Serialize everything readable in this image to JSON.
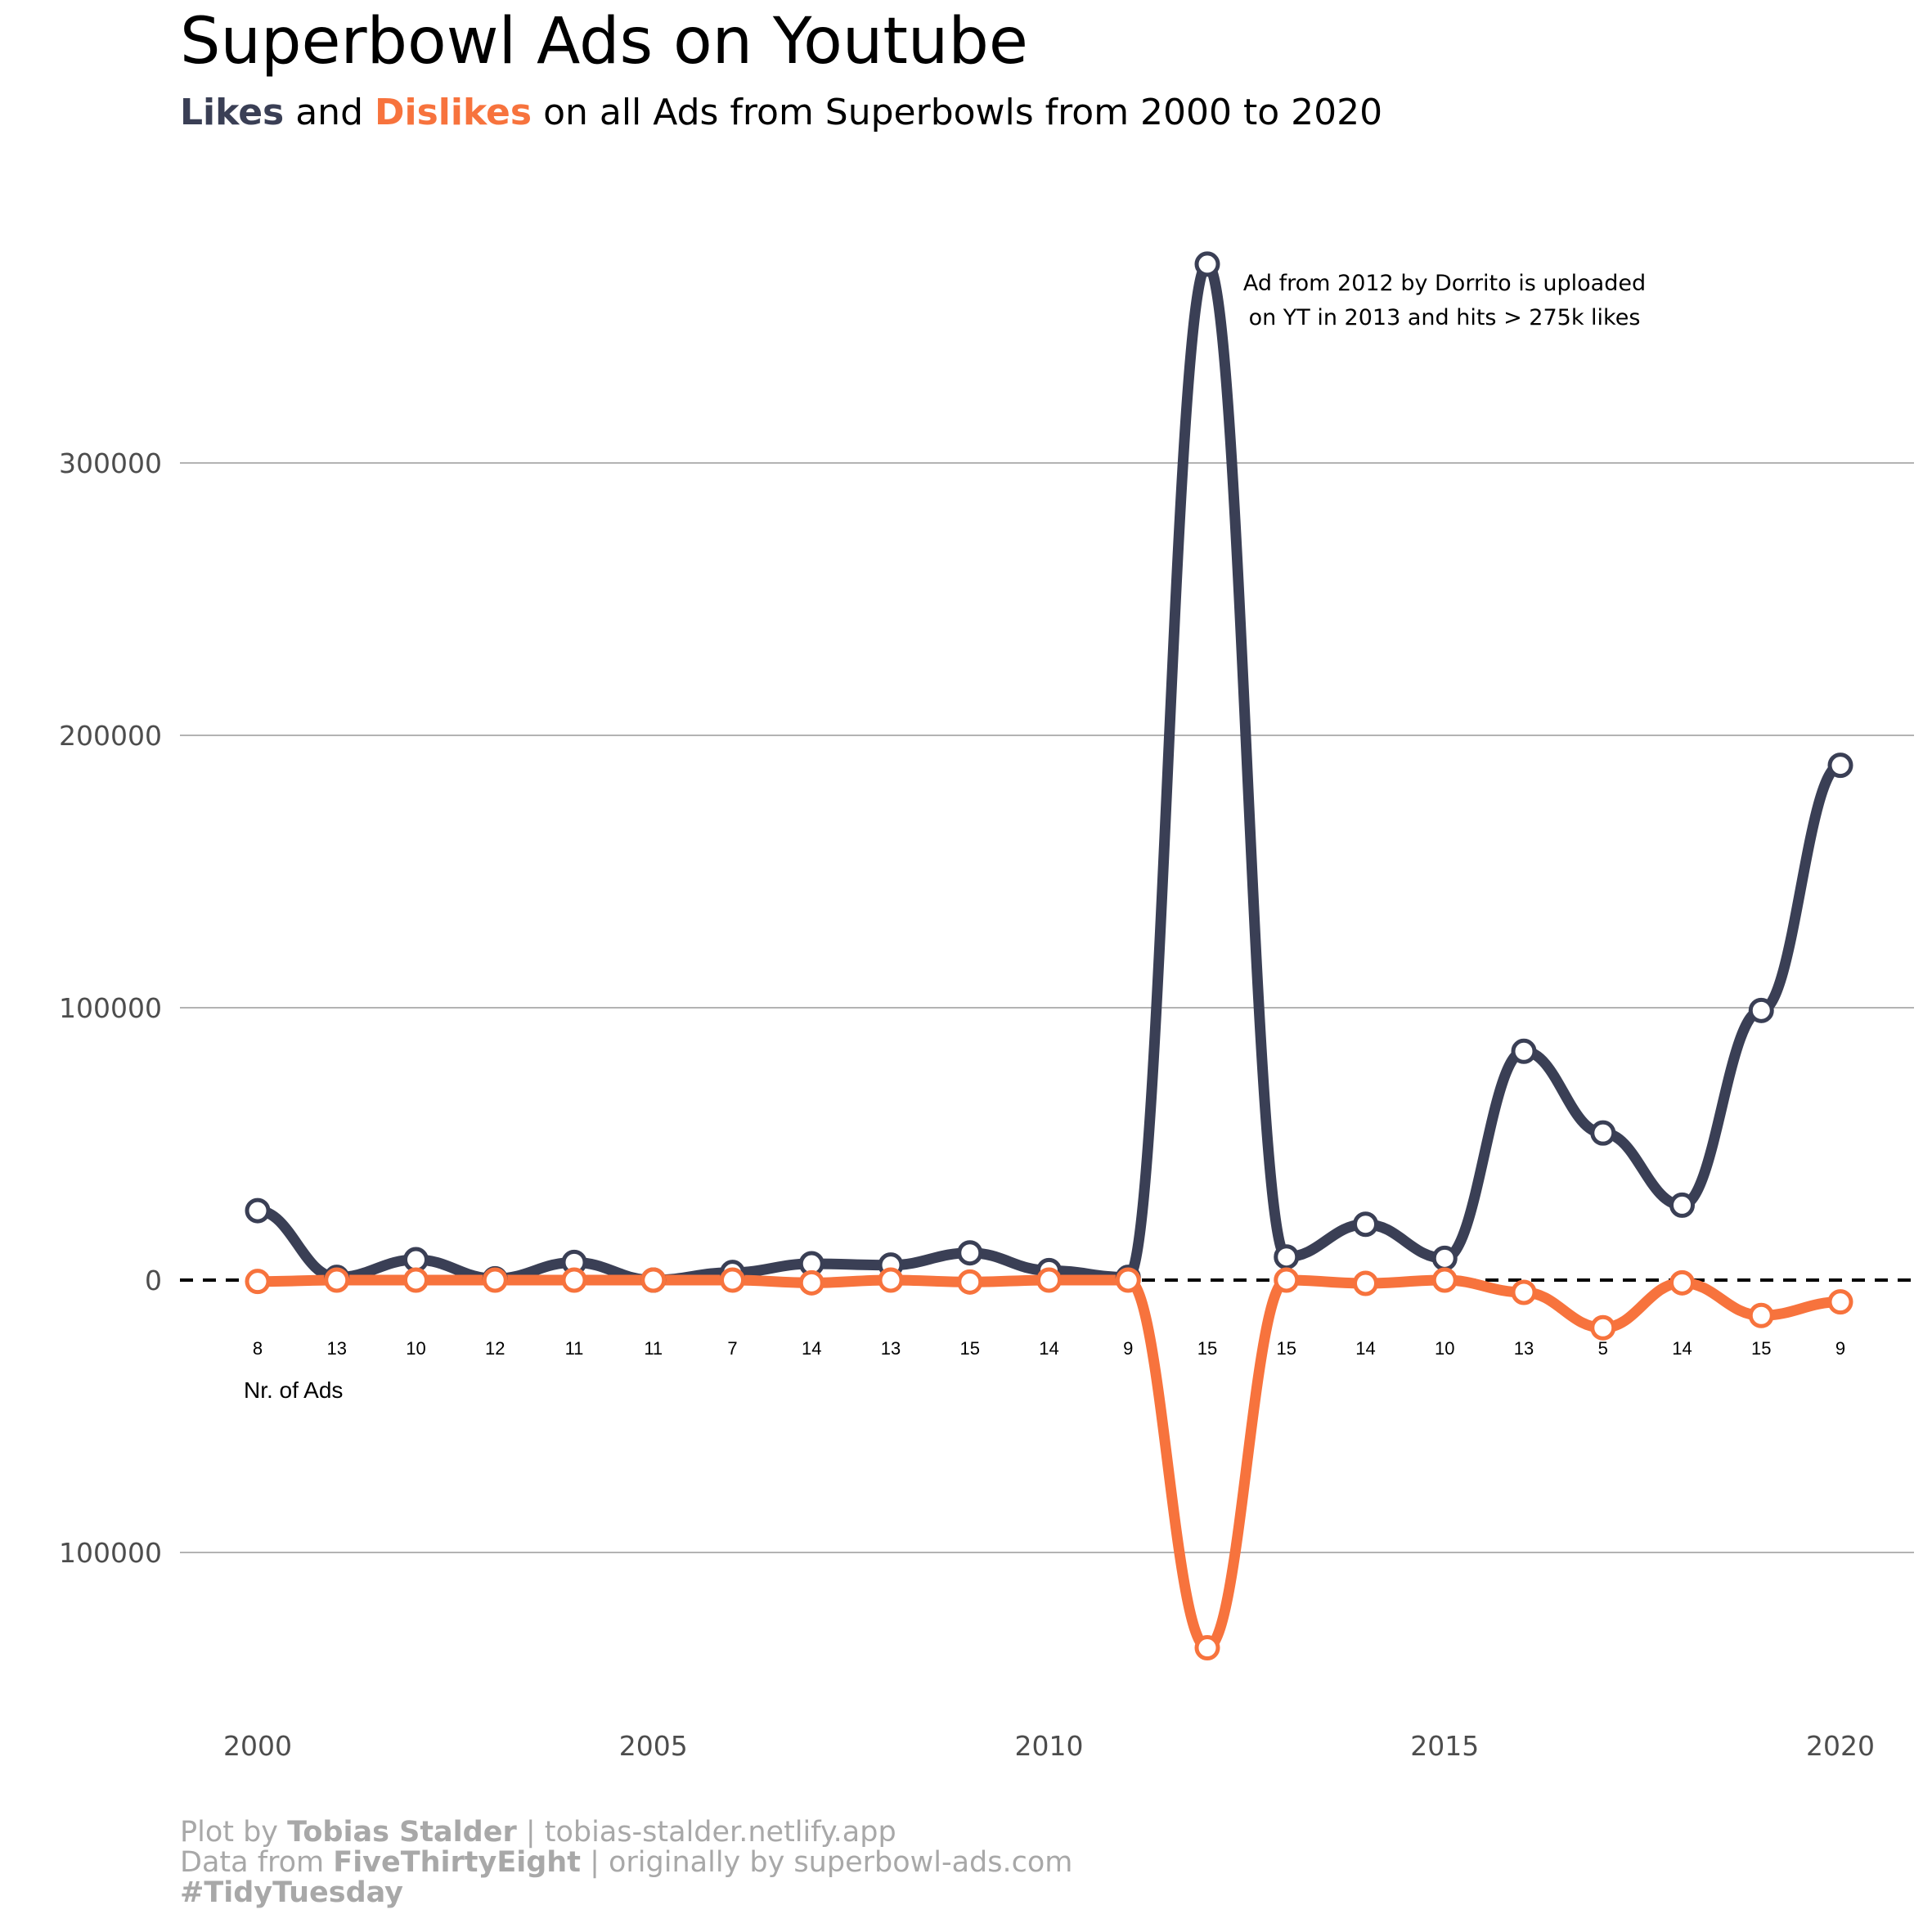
{
  "title": "Superbowl Ads on Youtube",
  "subtitle": {
    "likes": "Likes",
    "and": " and ",
    "dislikes": "Dislikes",
    "rest": " on all Ads from Superbowls from 2000 to 2020"
  },
  "annotation": {
    "line1": "Ad from 2012 by Dorrito is uploaded",
    "line2": "on YT in 2013 and hits > 275k likes"
  },
  "nr_label": "Nr. of Ads",
  "caption": {
    "line1_a": "Plot by ",
    "line1_b": "Tobias Stalder",
    "line1_c": " | tobias-stalder.netlify.app",
    "line2_a": "Data from ",
    "line2_b": "FiveThirtyEight",
    "line2_c": " | originally by superbowl-ads.com",
    "line3": "#TidyTuesday"
  },
  "colors": {
    "likes": "#3a3f55",
    "dislikes": "#f7733d",
    "grid": "#b3b3b3",
    "axis_text": "#4d4d4d"
  },
  "chart_data": {
    "type": "line",
    "title": "Superbowl Ads on Youtube",
    "x": [
      2000,
      2001,
      2002,
      2003,
      2004,
      2005,
      2006,
      2007,
      2008,
      2009,
      2010,
      2011,
      2012,
      2013,
      2014,
      2015,
      2016,
      2017,
      2018,
      2019,
      2020
    ],
    "series": [
      {
        "name": "Likes",
        "values": [
          25500,
          1000,
          7500,
          500,
          6500,
          0,
          2800,
          6000,
          5500,
          10000,
          3500,
          1000,
          373000,
          8500,
          20500,
          8000,
          84000,
          54000,
          27500,
          99000,
          189000
        ]
      },
      {
        "name": "Dislikes",
        "values": [
          -500,
          0,
          0,
          0,
          0,
          0,
          0,
          -1000,
          0,
          -700,
          0,
          0,
          -135000,
          0,
          -1200,
          0,
          -4500,
          -17500,
          -1000,
          -13000,
          -8000
        ]
      }
    ],
    "ad_counts": [
      8,
      13,
      10,
      12,
      11,
      11,
      7,
      14,
      13,
      15,
      14,
      9,
      15,
      15,
      14,
      10,
      13,
      5,
      14,
      15,
      9
    ],
    "y_ticks": [
      {
        "value": 300000,
        "label": "300000"
      },
      {
        "value": 200000,
        "label": "200000"
      },
      {
        "value": 100000,
        "label": "100000"
      },
      {
        "value": 0,
        "label": "0"
      },
      {
        "value": -100000,
        "label": "100000"
      }
    ],
    "x_ticks": [
      {
        "value": 2000,
        "label": "2000"
      },
      {
        "value": 2005,
        "label": "2005"
      },
      {
        "value": 2010,
        "label": "2010"
      },
      {
        "value": 2015,
        "label": "2015"
      },
      {
        "value": 2020,
        "label": "2020"
      }
    ],
    "xlim": [
      1999,
      2021
    ],
    "ylim": [
      -155000,
      380000
    ],
    "xlabel": "",
    "ylabel": ""
  }
}
